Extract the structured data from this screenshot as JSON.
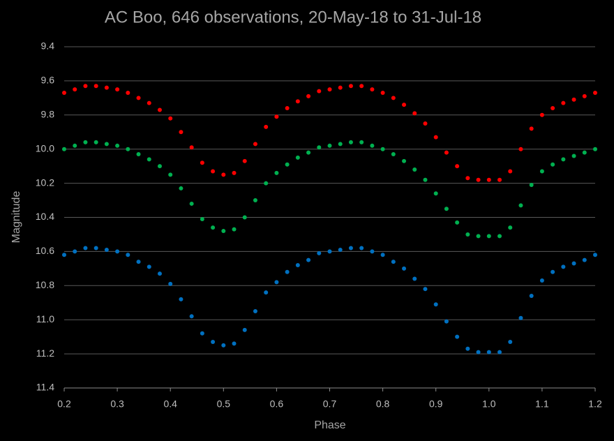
{
  "chart_data": {
    "type": "scatter",
    "title": "AC Boo, 646 observations, 20-May-18 to 31-Jul-18",
    "x_label": "Phase",
    "y_label": "Magnitude",
    "xlim": [
      0.2,
      1.2
    ],
    "xticks": [
      0.2,
      0.3,
      0.4,
      0.5,
      0.6,
      0.7,
      0.8,
      0.9,
      {
        "value": 1,
        "label": "1.0"
      },
      1.1,
      1.2
    ],
    "ylim": [
      9.4,
      11.4
    ],
    "y_inverted": true,
    "yticks": [
      9.4,
      9.6,
      9.8,
      {
        "value": 10,
        "label": "10.0"
      },
      10.2,
      10.4,
      10.6,
      10.8,
      {
        "value": 11,
        "label": "11.0"
      },
      11.2,
      11.4
    ],
    "grid": true,
    "x": [
      0.2,
      0.22,
      0.24,
      0.26,
      0.28,
      0.3,
      0.32,
      0.34,
      0.36,
      0.38,
      0.4,
      0.42,
      0.44,
      0.46,
      0.48,
      0.5,
      0.52,
      0.54,
      0.56,
      0.58,
      0.6,
      0.62,
      0.64,
      0.66,
      0.68,
      0.7,
      0.72,
      0.74,
      0.76,
      0.78,
      0.8,
      0.82,
      0.84,
      0.86,
      0.88,
      0.9,
      0.92,
      0.94,
      0.96,
      0.98,
      1.0,
      1.02,
      1.04,
      1.06,
      1.08,
      1.1,
      1.12,
      1.14,
      1.16,
      1.18,
      1.2
    ],
    "series": [
      {
        "color": "#ff0000",
        "values": [
          9.67,
          9.65,
          9.63,
          9.63,
          9.64,
          9.65,
          9.67,
          9.7,
          9.73,
          9.77,
          9.82,
          9.9,
          9.99,
          10.08,
          10.13,
          10.15,
          10.14,
          10.07,
          9.97,
          9.87,
          9.81,
          9.76,
          9.72,
          9.69,
          9.66,
          9.65,
          9.64,
          9.63,
          9.63,
          9.65,
          9.67,
          9.7,
          9.74,
          9.79,
          9.85,
          9.93,
          10.02,
          10.1,
          10.17,
          10.18,
          10.18,
          10.18,
          10.13,
          10.0,
          9.88,
          9.8,
          9.76,
          9.73,
          9.71,
          9.69,
          9.67
        ]
      },
      {
        "color": "#00b050",
        "values": [
          10.0,
          9.98,
          9.96,
          9.96,
          9.97,
          9.98,
          10.0,
          10.03,
          10.06,
          10.1,
          10.15,
          10.23,
          10.32,
          10.41,
          10.46,
          10.48,
          10.47,
          10.4,
          10.3,
          10.2,
          10.14,
          10.09,
          10.05,
          10.02,
          9.99,
          9.98,
          9.97,
          9.96,
          9.96,
          9.98,
          10.0,
          10.03,
          10.07,
          10.12,
          10.18,
          10.26,
          10.35,
          10.43,
          10.5,
          10.51,
          10.51,
          10.51,
          10.46,
          10.33,
          10.21,
          10.13,
          10.09,
          10.06,
          10.04,
          10.02,
          10.0
        ]
      },
      {
        "color": "#0070c0",
        "values": [
          10.62,
          10.6,
          10.58,
          10.58,
          10.59,
          10.6,
          10.62,
          10.66,
          10.69,
          10.73,
          10.79,
          10.88,
          10.98,
          11.08,
          11.13,
          11.15,
          11.14,
          11.06,
          10.95,
          10.84,
          10.78,
          10.72,
          10.68,
          10.65,
          10.61,
          10.6,
          10.59,
          10.58,
          10.58,
          10.6,
          10.62,
          10.66,
          10.7,
          10.76,
          10.82,
          10.91,
          11.01,
          11.1,
          11.17,
          11.19,
          11.19,
          11.19,
          11.13,
          10.99,
          10.86,
          10.77,
          10.72,
          10.69,
          10.67,
          10.65,
          10.62
        ]
      }
    ]
  }
}
